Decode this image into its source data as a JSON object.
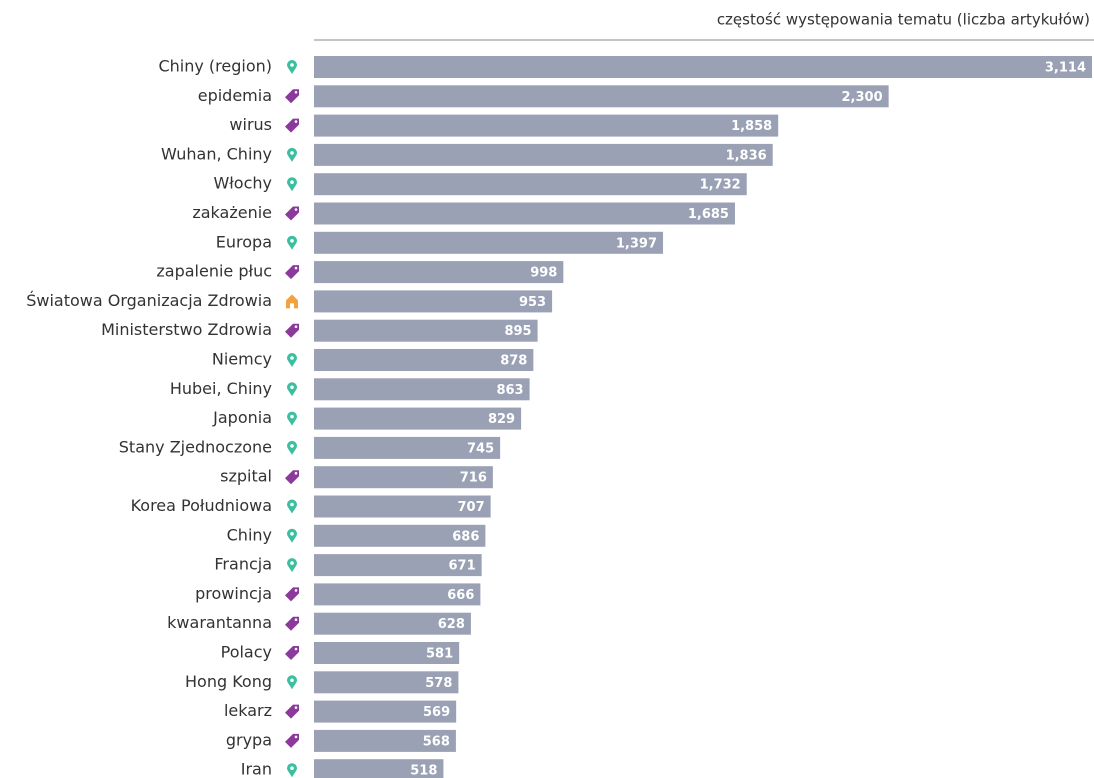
{
  "chart_data": {
    "type": "bar",
    "orientation": "horizontal",
    "x_label": "częstość występowania tematu (liczba artykułów)",
    "categories": [
      "Chiny (region)",
      "epidemia",
      "wirus",
      "Wuhan, Chiny",
      "Włochy",
      "zakażenie",
      "Europa",
      "zapalenie płuc",
      "Światowa Organizacja Zdrowia",
      "Ministerstwo Zdrowia",
      "Niemcy",
      "Hubei, Chiny",
      "Japonia",
      "Stany Zjednoczone",
      "szpital",
      "Korea Południowa",
      "Chiny",
      "Francja",
      "prowincja",
      "kwarantanna",
      "Polacy",
      "Hong Kong",
      "lekarz",
      "grypa",
      "Iran"
    ],
    "values": [
      3114,
      2300,
      1858,
      1836,
      1732,
      1685,
      1397,
      998,
      953,
      895,
      878,
      863,
      829,
      745,
      716,
      707,
      686,
      671,
      666,
      628,
      581,
      578,
      569,
      568,
      518
    ],
    "value_labels": [
      "3,114",
      "2,300",
      "1,858",
      "1,836",
      "1,732",
      "1,685",
      "1,397",
      "998",
      "953",
      "895",
      "878",
      "863",
      "829",
      "745",
      "716",
      "707",
      "686",
      "671",
      "666",
      "628",
      "581",
      "578",
      "569",
      "568",
      "518"
    ],
    "color": "#9aa1b5",
    "icons": [
      "pin",
      "tag",
      "tag",
      "pin",
      "pin",
      "tag",
      "pin",
      "tag",
      "home",
      "tag",
      "pin",
      "pin",
      "pin",
      "pin",
      "tag",
      "pin",
      "pin",
      "pin",
      "tag",
      "tag",
      "tag",
      "pin",
      "tag",
      "tag",
      "pin"
    ],
    "icon_colors": {
      "pin": "#3bbf9f",
      "tag": "#8b3a9b",
      "home": "#f2a341"
    }
  }
}
